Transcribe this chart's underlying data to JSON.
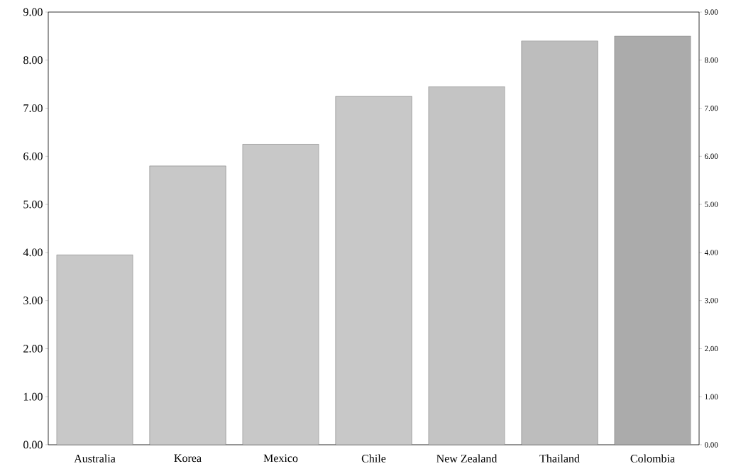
{
  "chart_data": {
    "type": "bar",
    "categories": [
      "Australia",
      "Korea",
      "Mexico",
      "Chile",
      "New Zealand",
      "Thailand",
      "Colombia"
    ],
    "values": [
      3.95,
      5.8,
      6.25,
      7.25,
      7.45,
      8.4,
      8.5
    ],
    "colors": [
      "#c8c8c8",
      "#c8c8c8",
      "#c8c8c8",
      "#c8c8c8",
      "#c4c4c4",
      "#bdbdbd",
      "#ababab"
    ],
    "ylim": [
      0,
      9
    ],
    "yticks": [
      {
        "value": 0,
        "label": "0.00"
      },
      {
        "value": 1,
        "label": "1.00"
      },
      {
        "value": 2,
        "label": "2.00"
      },
      {
        "value": 3,
        "label": "3.00"
      },
      {
        "value": 4,
        "label": "4.00"
      },
      {
        "value": 5,
        "label": "5.00"
      },
      {
        "value": 6,
        "label": "6.00"
      },
      {
        "value": 7,
        "label": "7.00"
      },
      {
        "value": 8,
        "label": "8.00"
      },
      {
        "value": 9,
        "label": "9.00"
      }
    ],
    "y2lim": [
      0,
      9
    ],
    "y2ticks": [
      {
        "value": 0,
        "label": "0.00"
      },
      {
        "value": 1,
        "label": "1.00"
      },
      {
        "value": 2,
        "label": "2.00"
      },
      {
        "value": 3,
        "label": "3.00"
      },
      {
        "value": 4,
        "label": "4.00"
      },
      {
        "value": 5,
        "label": "5.00"
      },
      {
        "value": 6,
        "label": "6.00"
      },
      {
        "value": 7,
        "label": "7.00"
      },
      {
        "value": 8,
        "label": "8.00"
      },
      {
        "value": 9,
        "label": "9.00"
      }
    ]
  }
}
